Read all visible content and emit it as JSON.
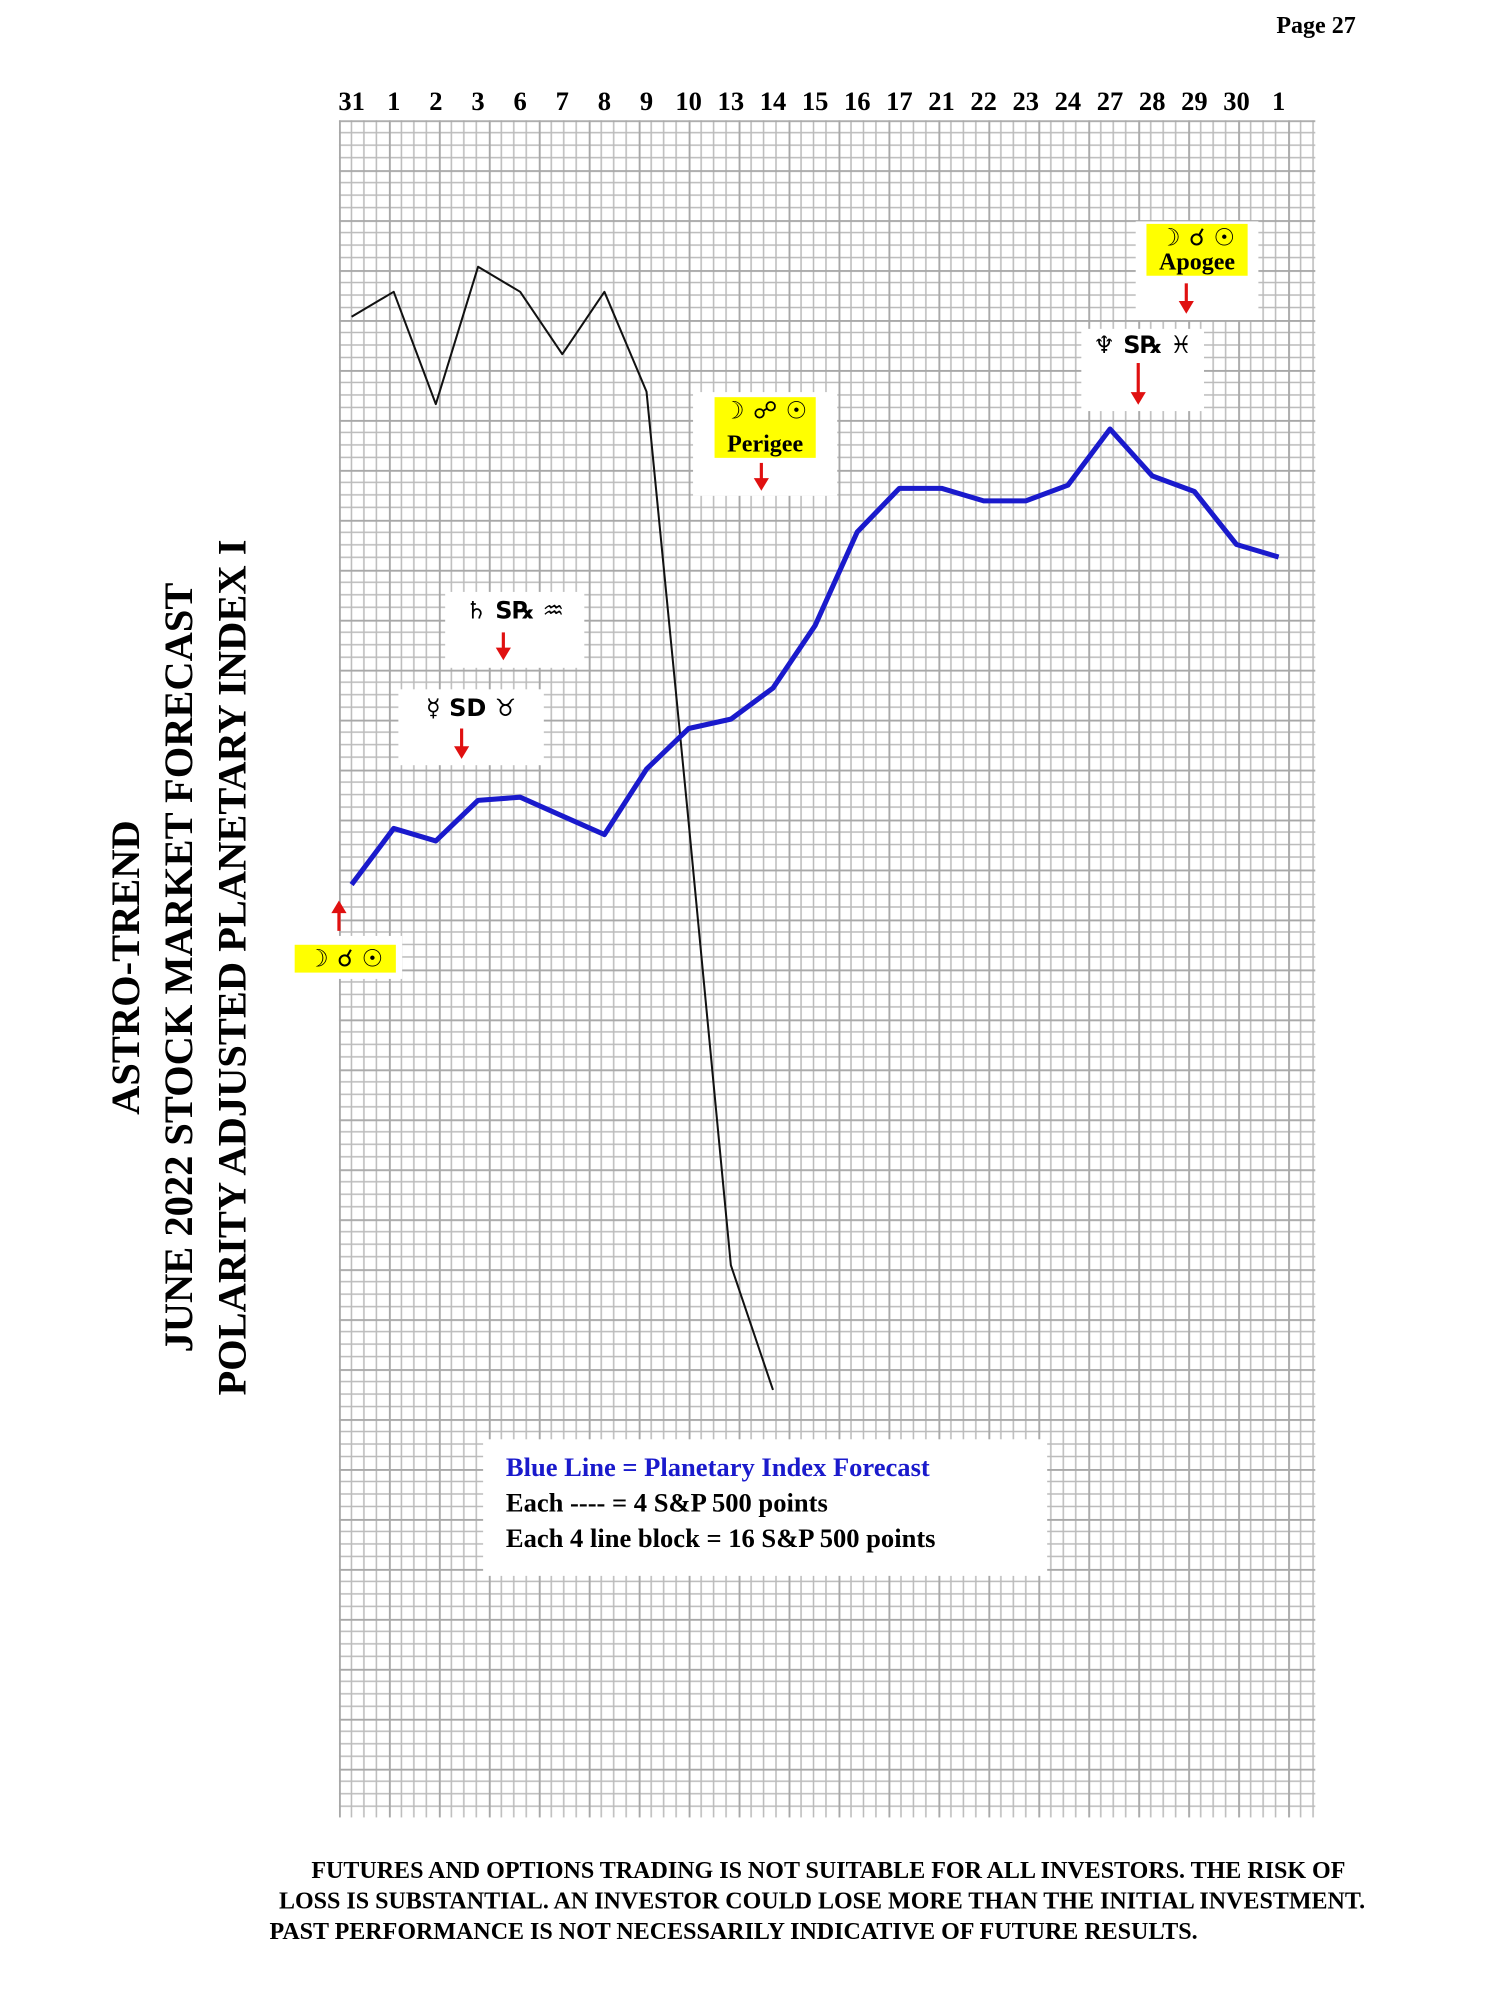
{
  "page": "Page 27",
  "chart_data": {
    "type": "line",
    "title": [
      "ASTRO-TREND",
      "JUNE 2022  STOCK MARKET FORECAST",
      "POLARITY ADJUSTED PLANETARY INDEX I"
    ],
    "categories": [
      "31",
      "1",
      "2",
      "3",
      "6",
      "7",
      "8",
      "9",
      "10",
      "13",
      "14",
      "15",
      "16",
      "17",
      "21",
      "22",
      "23",
      "24",
      "27",
      "28",
      "29",
      "30",
      "1"
    ],
    "ylim": [
      0,
      544
    ],
    "grid": true,
    "series": [
      {
        "color": "#1a1acc",
        "values": [
          299,
          317,
          313,
          326,
          327,
          321,
          315,
          336,
          349,
          352,
          362,
          382,
          412,
          426,
          426,
          422,
          422,
          427,
          445,
          430,
          425,
          408,
          404
        ]
      },
      {
        "color": "#111111",
        "values": [
          481,
          489,
          453,
          497,
          489,
          469,
          489,
          457,
          319,
          177,
          137,
          null,
          null,
          null,
          null,
          null,
          null,
          null,
          null,
          null,
          null,
          null,
          null
        ]
      }
    ],
    "annotations": [
      {
        "symbols": "☽ ☌ ☉"
      },
      {
        "symbols": "☿  SD  ♉"
      },
      {
        "symbols": "♄  S℞  ♒"
      },
      {
        "symbols": "☽ ☍ ☉",
        "label": "Perigee"
      },
      {
        "symbols": "☽ ☌ ☉",
        "label": "Apogee"
      },
      {
        "symbols": "♆  S℞  ♓"
      }
    ],
    "notes": [
      "Blue Line = Planetary Index Forecast",
      "Each ---- =   4 S&P 500 points",
      "Each 4 line block =  16  S&P 500 points"
    ]
  },
  "disclaimer": [
    "FUTURES AND OPTIONS TRADING IS NOT SUITABLE FOR ALL INVESTORS.  THE RISK OF",
    "LOSS IS SUBSTANTIAL.  AN INVESTOR COULD LOSE MORE THAN THE INITIAL INVESTMENT.",
    "PAST PERFORMANCE IS NOT NECESSARILY INDICATIVE OF FUTURE RESULTS."
  ]
}
